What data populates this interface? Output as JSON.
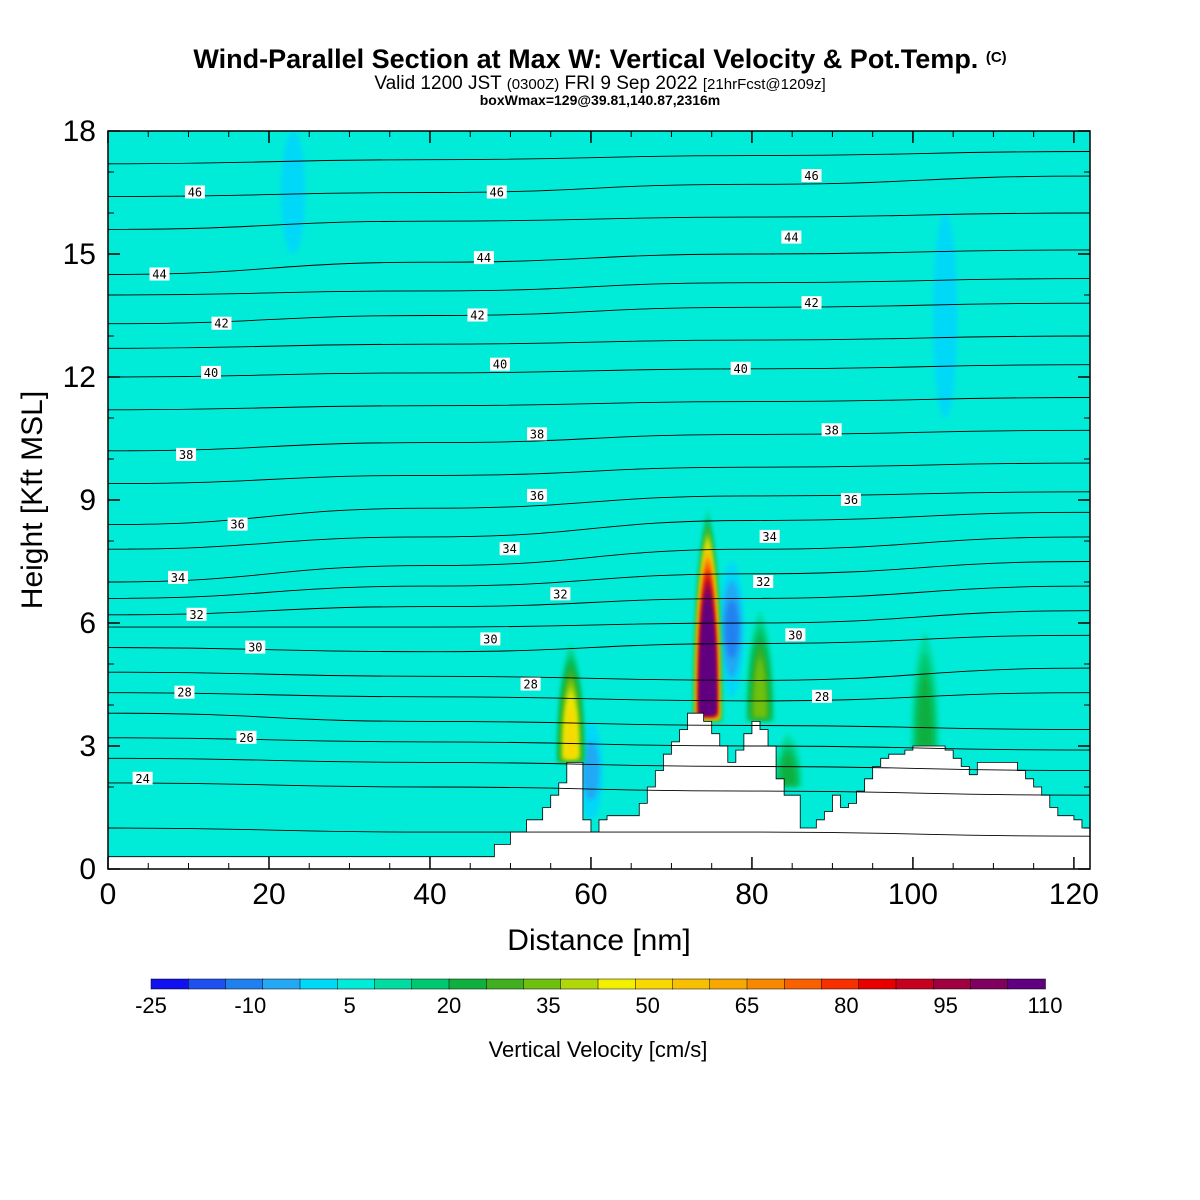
{
  "header": {
    "title_main": "Wind-Parallel Section at Max W: Vertical Velocity & Pot.Temp.",
    "title_mark": "(C)",
    "valid_a": "Valid 1200 JST",
    "valid_b": "(0300Z)",
    "valid_c": "FRI 9 Sep 2022",
    "valid_d": "[21hrFcst@1209z]",
    "box_info": "boxWmax=129@39.81,140.87,2316m"
  },
  "chart_data": {
    "type": "heatmap",
    "title": "Wind-Parallel Section at Max W: Vertical Velocity & Pot.Temp.",
    "xlabel": "Distance [nm]",
    "ylabel": "Height [Kft MSL]",
    "xlim": [
      0,
      122
    ],
    "ylim": [
      0,
      18
    ],
    "x_ticks": [
      0,
      20,
      40,
      60,
      80,
      100,
      120
    ],
    "y_ticks": [
      0,
      3,
      6,
      9,
      12,
      15,
      18
    ],
    "colorbar": {
      "label": "Vertical Velocity [cm/s]",
      "tick_labels": [
        -25,
        -10,
        5,
        20,
        35,
        50,
        65,
        80,
        95,
        110
      ],
      "levels": [
        -25,
        -20,
        -15,
        -10,
        -5,
        0,
        5,
        10,
        15,
        20,
        25,
        30,
        35,
        40,
        45,
        50,
        55,
        60,
        65,
        70,
        75,
        80,
        85,
        90,
        95,
        100,
        105,
        110
      ],
      "colors": [
        "#1010f0",
        "#1e50f0",
        "#2080f0",
        "#24a8f4",
        "#00d8f8",
        "#00ecd8",
        "#00dca0",
        "#00c870",
        "#10b040",
        "#40b020",
        "#70c010",
        "#b0d808",
        "#f0f000",
        "#f8d800",
        "#f8c000",
        "#f8a800",
        "#f88800",
        "#f86000",
        "#f83000",
        "#e80000",
        "#c80020",
        "#a00040",
        "#800060",
        "#600080"
      ]
    },
    "background_value_cm_s": 0,
    "updrafts": [
      {
        "x": 57.5,
        "base_kft": 2.6,
        "top_kft": 5.5,
        "max_cm_s": 40
      },
      {
        "x": 74.5,
        "base_kft": 3.6,
        "top_kft": 8.8,
        "max_cm_s": 129
      },
      {
        "x": 81,
        "base_kft": 3.6,
        "top_kft": 6.3,
        "max_cm_s": 25
      },
      {
        "x": 101.5,
        "base_kft": 2.9,
        "top_kft": 5.8,
        "max_cm_s": 15
      },
      {
        "x": 84.5,
        "base_kft": 2,
        "top_kft": 3.3,
        "max_cm_s": 15
      }
    ],
    "downdrafts": [
      {
        "x": 77.5,
        "from_kft": 4.2,
        "to_kft": 7.5,
        "min_cm_s": -15
      },
      {
        "x": 60,
        "from_kft": 1.2,
        "to_kft": 3.6,
        "min_cm_s": -12
      },
      {
        "x": 104,
        "from_kft": 11,
        "to_kft": 16,
        "min_cm_s": -8
      },
      {
        "x": 23,
        "from_kft": 15,
        "to_kft": 18,
        "min_cm_s": -8
      }
    ],
    "terrain": {
      "x": [
        0,
        47,
        48,
        50,
        52,
        54,
        55,
        56,
        57,
        59,
        60,
        61,
        62,
        66,
        67,
        68,
        69,
        70,
        71,
        72,
        73,
        74,
        75,
        76,
        77,
        78,
        79,
        80,
        81,
        82,
        83,
        84,
        86,
        87,
        88,
        89,
        90,
        91,
        92,
        93,
        94,
        95,
        96,
        97,
        98,
        99,
        100,
        104,
        105,
        106,
        107,
        108,
        111,
        113,
        114,
        115,
        116,
        117,
        118,
        120,
        121,
        122
      ],
      "height_kft": [
        0.3,
        0.3,
        0.6,
        0.9,
        1.2,
        1.5,
        1.8,
        2.1,
        2.6,
        1.2,
        0.9,
        1.2,
        1.3,
        1.6,
        2,
        2.4,
        2.8,
        3.1,
        3.4,
        3.8,
        3.8,
        3.6,
        3.3,
        3.0,
        2.6,
        2.9,
        3.3,
        3.6,
        3.4,
        3.0,
        2.2,
        1.8,
        1.0,
        1.0,
        1.2,
        1.4,
        1.8,
        1.5,
        1.6,
        1.9,
        2.2,
        2.5,
        2.7,
        2.8,
        2.8,
        2.9,
        3.0,
        2.9,
        2.7,
        2.5,
        2.3,
        2.6,
        2.6,
        2.4,
        2.2,
        2.0,
        1.8,
        1.5,
        1.3,
        1.2,
        1.0,
        1.0
      ]
    },
    "isentropes": [
      {
        "theta": 23,
        "h": [
          1.0,
          0.9,
          0.9,
          0.8
        ]
      },
      {
        "theta": 24,
        "h": [
          2.1,
          2.0,
          1.9,
          1.8
        ]
      },
      {
        "theta": 25,
        "h": [
          2.7,
          2.6,
          2.5,
          2.4
        ]
      },
      {
        "theta": 26,
        "h": [
          3.2,
          3.1,
          3.0,
          2.9
        ]
      },
      {
        "theta": 27,
        "h": [
          3.8,
          3.6,
          3.5,
          3.4
        ]
      },
      {
        "theta": 28,
        "h": [
          4.3,
          4.2,
          4.1,
          4.3
        ]
      },
      {
        "theta": 29,
        "h": [
          4.8,
          4.7,
          4.6,
          4.9
        ]
      },
      {
        "theta": 30,
        "h": [
          5.4,
          5.3,
          5.5,
          5.7
        ]
      },
      {
        "theta": 31,
        "h": [
          5.9,
          5.9,
          6.0,
          6.3
        ]
      },
      {
        "theta": 32,
        "h": [
          6.2,
          6.4,
          6.6,
          6.9
        ]
      },
      {
        "theta": 33,
        "h": [
          6.6,
          6.9,
          7.2,
          7.5
        ]
      },
      {
        "theta": 34,
        "h": [
          7.0,
          7.4,
          7.8,
          8.1
        ]
      },
      {
        "theta": 35,
        "h": [
          7.8,
          8.1,
          8.5,
          8.7
        ]
      },
      {
        "theta": 36,
        "h": [
          8.4,
          8.8,
          9.1,
          9.2
        ]
      },
      {
        "theta": 37,
        "h": [
          9.4,
          9.6,
          9.8,
          9.9
        ]
      },
      {
        "theta": 38,
        "h": [
          10.2,
          10.4,
          10.6,
          10.7
        ]
      },
      {
        "theta": 39,
        "h": [
          11.2,
          11.3,
          11.4,
          11.5
        ]
      },
      {
        "theta": 40,
        "h": [
          12.0,
          12.1,
          12.2,
          12.3
        ]
      },
      {
        "theta": 41,
        "h": [
          12.7,
          12.8,
          12.9,
          13.0
        ]
      },
      {
        "theta": 42,
        "h": [
          13.3,
          13.5,
          13.7,
          13.8
        ]
      },
      {
        "theta": 43,
        "h": [
          14.0,
          14.1,
          14.3,
          14.4
        ]
      },
      {
        "theta": 44,
        "h": [
          14.5,
          14.8,
          15.0,
          15.1
        ]
      },
      {
        "theta": 45,
        "h": [
          15.6,
          15.8,
          15.9,
          16.0
        ]
      },
      {
        "theta": 46,
        "h": [
          16.4,
          16.5,
          16.7,
          16.9
        ]
      },
      {
        "theta": 47,
        "h": [
          17.2,
          17.3,
          17.4,
          17.5
        ]
      }
    ],
    "isentrope_x": [
      0,
      40,
      80,
      122
    ],
    "contour_labels": [
      {
        "text": "24",
        "x": 4.3,
        "y": 2.2
      },
      {
        "text": "26",
        "x": 17.2,
        "y": 3.2
      },
      {
        "text": "28",
        "x": 9.5,
        "y": 4.3
      },
      {
        "text": "30",
        "x": 18.3,
        "y": 5.4
      },
      {
        "text": "32",
        "x": 11,
        "y": 6.2
      },
      {
        "text": "34",
        "x": 8.7,
        "y": 7.1
      },
      {
        "text": "36",
        "x": 16.1,
        "y": 8.4
      },
      {
        "text": "38",
        "x": 9.7,
        "y": 10.1
      },
      {
        "text": "40",
        "x": 12.8,
        "y": 12.1
      },
      {
        "text": "42",
        "x": 14.1,
        "y": 13.3
      },
      {
        "text": "44",
        "x": 6.4,
        "y": 14.5
      },
      {
        "text": "46",
        "x": 10.8,
        "y": 16.5
      },
      {
        "text": "28",
        "x": 52.5,
        "y": 4.5
      },
      {
        "text": "30",
        "x": 47.5,
        "y": 5.6
      },
      {
        "text": "32",
        "x": 56.2,
        "y": 6.7
      },
      {
        "text": "34",
        "x": 49.9,
        "y": 7.8
      },
      {
        "text": "36",
        "x": 53.3,
        "y": 9.1
      },
      {
        "text": "38",
        "x": 53.3,
        "y": 10.6
      },
      {
        "text": "40",
        "x": 48.7,
        "y": 12.3
      },
      {
        "text": "42",
        "x": 45.9,
        "y": 13.5
      },
      {
        "text": "44",
        "x": 46.7,
        "y": 14.9
      },
      {
        "text": "46",
        "x": 48.3,
        "y": 16.5
      },
      {
        "text": "28",
        "x": 88.7,
        "y": 4.2
      },
      {
        "text": "30",
        "x": 85.4,
        "y": 5.7
      },
      {
        "text": "32",
        "x": 81.4,
        "y": 7.0
      },
      {
        "text": "34",
        "x": 82.2,
        "y": 8.1
      },
      {
        "text": "36",
        "x": 92.3,
        "y": 9.0
      },
      {
        "text": "38",
        "x": 89.9,
        "y": 10.7
      },
      {
        "text": "40",
        "x": 78.6,
        "y": 12.2
      },
      {
        "text": "42",
        "x": 87.4,
        "y": 13.8
      },
      {
        "text": "44",
        "x": 84.9,
        "y": 15.4
      },
      {
        "text": "46",
        "x": 87.4,
        "y": 16.9
      }
    ]
  }
}
